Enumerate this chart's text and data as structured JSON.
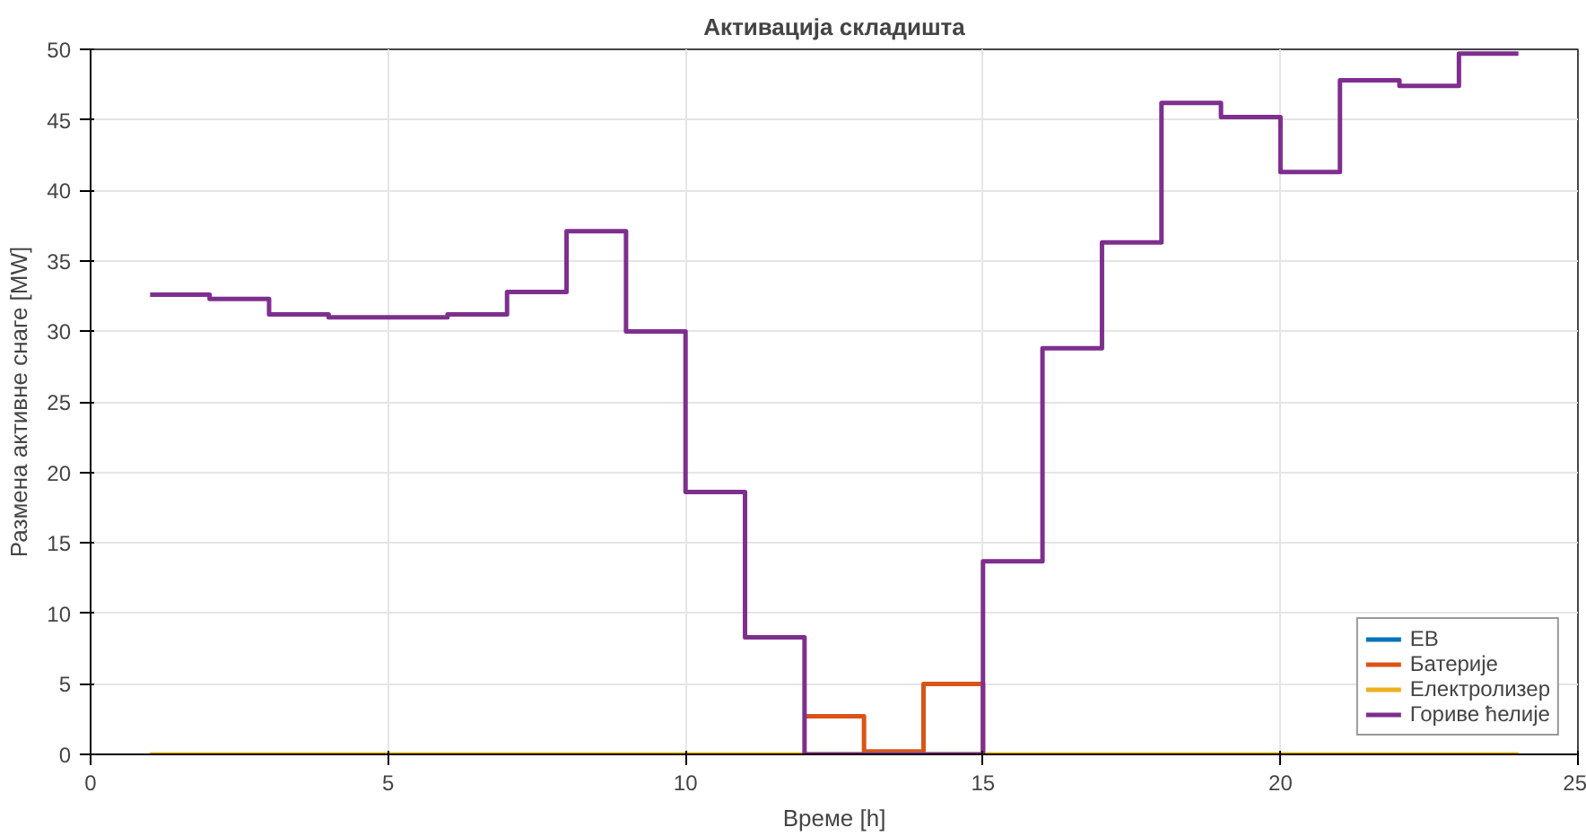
{
  "chart_data": {
    "type": "step",
    "title": "Активација складишта",
    "xlabel": "Време [h]",
    "ylabel": "Размена активне снаге [MW]",
    "x": [
      1,
      2,
      3,
      4,
      5,
      6,
      7,
      8,
      9,
      10,
      11,
      12,
      13,
      14,
      15,
      16,
      17,
      18,
      19,
      20,
      21,
      22,
      23,
      24
    ],
    "series": [
      {
        "name": "ЕВ",
        "color": "#0072bd",
        "values": [
          null,
          null,
          null,
          null,
          null,
          null,
          null,
          null,
          null,
          null,
          null,
          null,
          null,
          null,
          null,
          null,
          null,
          null,
          null,
          null,
          null,
          null,
          null,
          null
        ]
      },
      {
        "name": "Батерије",
        "color": "#d95319",
        "values": [
          null,
          null,
          null,
          null,
          null,
          null,
          null,
          null,
          null,
          null,
          null,
          2.7,
          0.2,
          5.0,
          0,
          null,
          null,
          null,
          null,
          null,
          null,
          null,
          null,
          null
        ]
      },
      {
        "name": "Електролизер",
        "color": "#edb120",
        "values": [
          0,
          0,
          0,
          0,
          0,
          0,
          0,
          0,
          0,
          0,
          0,
          0,
          0,
          0,
          0,
          0,
          0,
          0,
          0,
          0,
          0,
          0,
          0,
          0
        ]
      },
      {
        "name": "Гориве ћелије",
        "color": "#7e2f8e",
        "values": [
          32.6,
          32.3,
          31.2,
          31.0,
          31.0,
          31.2,
          32.8,
          37.1,
          30.0,
          18.6,
          8.3,
          0,
          0,
          0,
          13.7,
          28.8,
          36.3,
          46.2,
          45.2,
          41.3,
          47.8,
          47.4,
          49.7,
          49.7
        ]
      }
    ],
    "xlim": [
      0,
      25
    ],
    "ylim": [
      0,
      50
    ],
    "xticks": [
      0,
      5,
      10,
      15,
      20,
      25
    ],
    "yticks": [
      0,
      5,
      10,
      15,
      20,
      25,
      30,
      35,
      40,
      45,
      50
    ],
    "grid": true,
    "legend": "bottom right"
  }
}
